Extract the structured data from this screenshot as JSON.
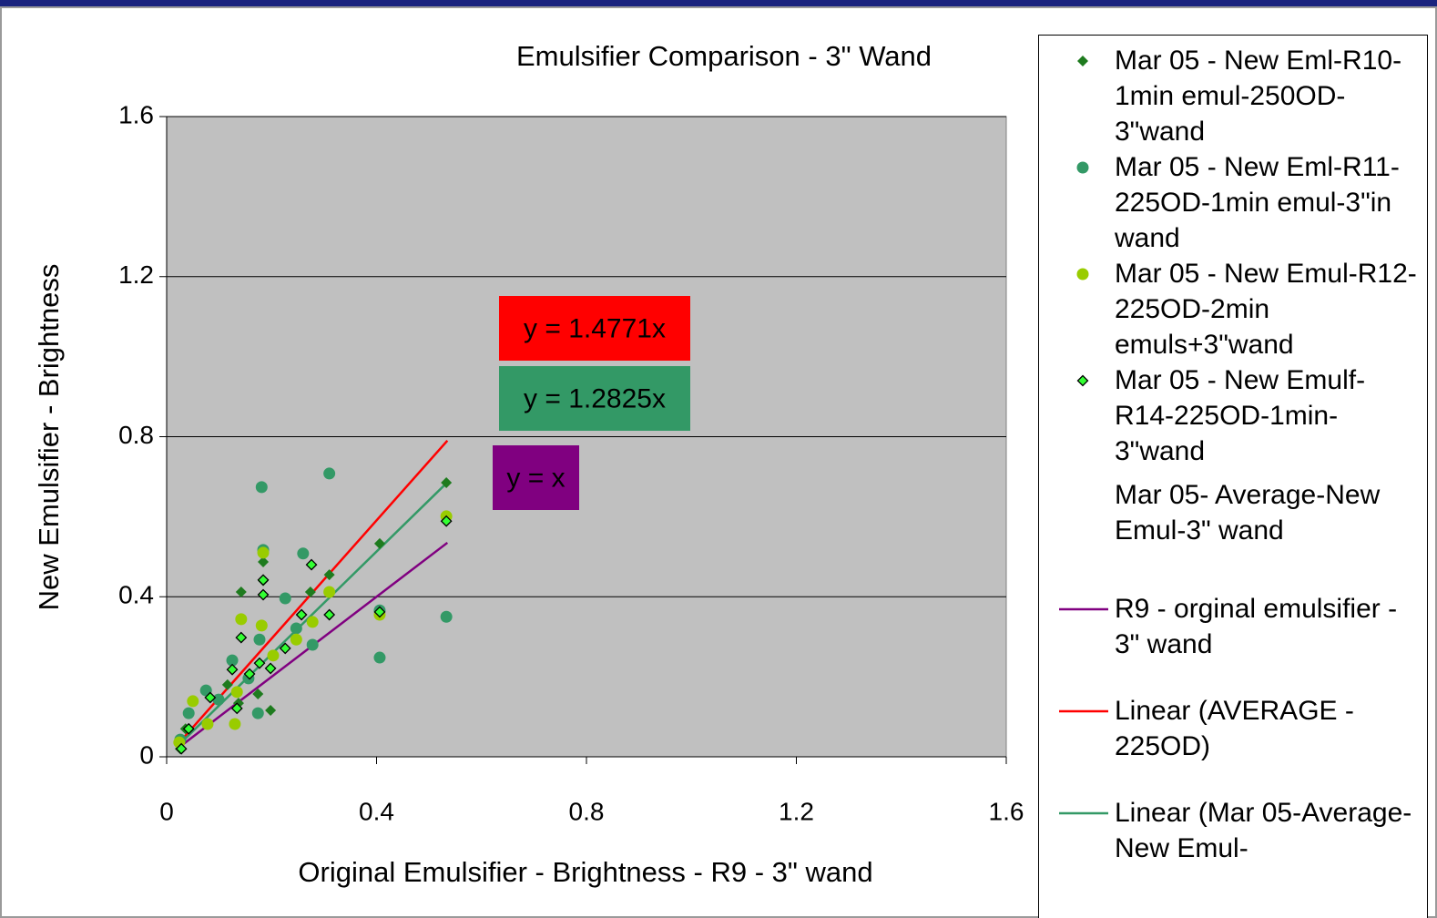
{
  "chart_data": {
    "type": "scatter",
    "title": "Emulsifier Comparison - 3\" Wand",
    "x_label": "Original Emulsifier - Brightness - R9 - 3\" wand",
    "y_label": "New Emulsifier - Brightness",
    "xlim": [
      0,
      1.6
    ],
    "xticks": [
      0,
      0.4,
      0.8,
      1.2,
      1.6
    ],
    "ylim": [
      0,
      1.6
    ],
    "yticks": [
      0,
      0.4,
      0.8,
      1.2,
      1.6
    ],
    "grid": true,
    "legend": "right",
    "series": [
      {
        "name": "Mar 05 - New Eml-R10-1min emul-250OD-3\"wand",
        "marker": "diamond",
        "color": "#1e7b1e",
        "x": [
          0.198,
          0.142,
          0.184,
          0.184,
          0.533,
          0.31,
          0.274,
          0.406,
          0.174,
          0.036,
          0.026,
          0.116,
          0.137
        ],
        "values": [
          0.116,
          0.412,
          0.487,
          0.44,
          0.685,
          0.455,
          0.412,
          0.533,
          0.157,
          0.07,
          0.02,
          0.18,
          0.134
        ]
      },
      {
        "name": "Mar 05 - New Eml-R11-225OD-1min emul-3\"in wand",
        "marker": "circle",
        "color": "#339966",
        "x": [
          0.181,
          0.31,
          0.184,
          0.26,
          0.226,
          0.533,
          0.406,
          0.177,
          0.174,
          0.075,
          0.042,
          0.026,
          0.125,
          0.156,
          0.278,
          0.247,
          0.406,
          0.099
        ],
        "values": [
          0.674,
          0.708,
          0.517,
          0.508,
          0.396,
          0.35,
          0.248,
          0.293,
          0.109,
          0.166,
          0.109,
          0.043,
          0.241,
          0.196,
          0.28,
          0.321,
          0.366,
          0.143
        ]
      },
      {
        "name": "Mar 05 - New Emul-R12-225OD-2min emuls+3\"wand",
        "marker": "circle",
        "color": "#99cc00",
        "x": [
          0.184,
          0.181,
          0.142,
          0.31,
          0.533,
          0.406,
          0.278,
          0.247,
          0.13,
          0.078,
          0.203,
          0.134,
          0.05,
          0.024
        ],
        "values": [
          0.51,
          0.328,
          0.344,
          0.412,
          0.601,
          0.355,
          0.337,
          0.293,
          0.082,
          0.082,
          0.253,
          0.162,
          0.139,
          0.036
        ]
      },
      {
        "name": "Mar 05 - New Emulf-R14-225OD-1min-3\"wand",
        "marker": "diamond-outline",
        "color": "#33ff33",
        "x": [
          0.276,
          0.184,
          0.184,
          0.257,
          0.31,
          0.533,
          0.406,
          0.142,
          0.226,
          0.198,
          0.177,
          0.158,
          0.125,
          0.083,
          0.134,
          0.028,
          0.042
        ],
        "values": [
          0.48,
          0.405,
          0.442,
          0.355,
          0.355,
          0.589,
          0.362,
          0.298,
          0.271,
          0.221,
          0.234,
          0.207,
          0.218,
          0.148,
          0.121,
          0.02,
          0.07
        ]
      },
      {
        "name": "Mar 05- Average-New Emul-3\" wand",
        "marker": "none",
        "color": "#000000",
        "x": [],
        "values": []
      },
      {
        "name": "R9 - orginal emulsifier - 3\" wand",
        "type": "line",
        "color": "#800080",
        "x": [
          0.02,
          0.535
        ],
        "values": [
          0.02,
          0.535
        ]
      },
      {
        "name": "Linear (AVERAGE - 225OD)",
        "type": "line",
        "color": "#ff0000",
        "x": [
          0.02,
          0.535
        ],
        "values": [
          0.0295,
          0.7902
        ]
      },
      {
        "name": "Linear (Mar 05-Average-New Emul-",
        "type": "line",
        "color": "#339966",
        "x": [
          0.02,
          0.535
        ],
        "values": [
          0.0257,
          0.6861
        ]
      }
    ],
    "annotations": [
      {
        "text": "y = 1.4771x",
        "color": "#ff0000"
      },
      {
        "text": "y = 1.2825x",
        "color": "#339966"
      },
      {
        "text": "y = x",
        "color": "#800080"
      }
    ]
  }
}
